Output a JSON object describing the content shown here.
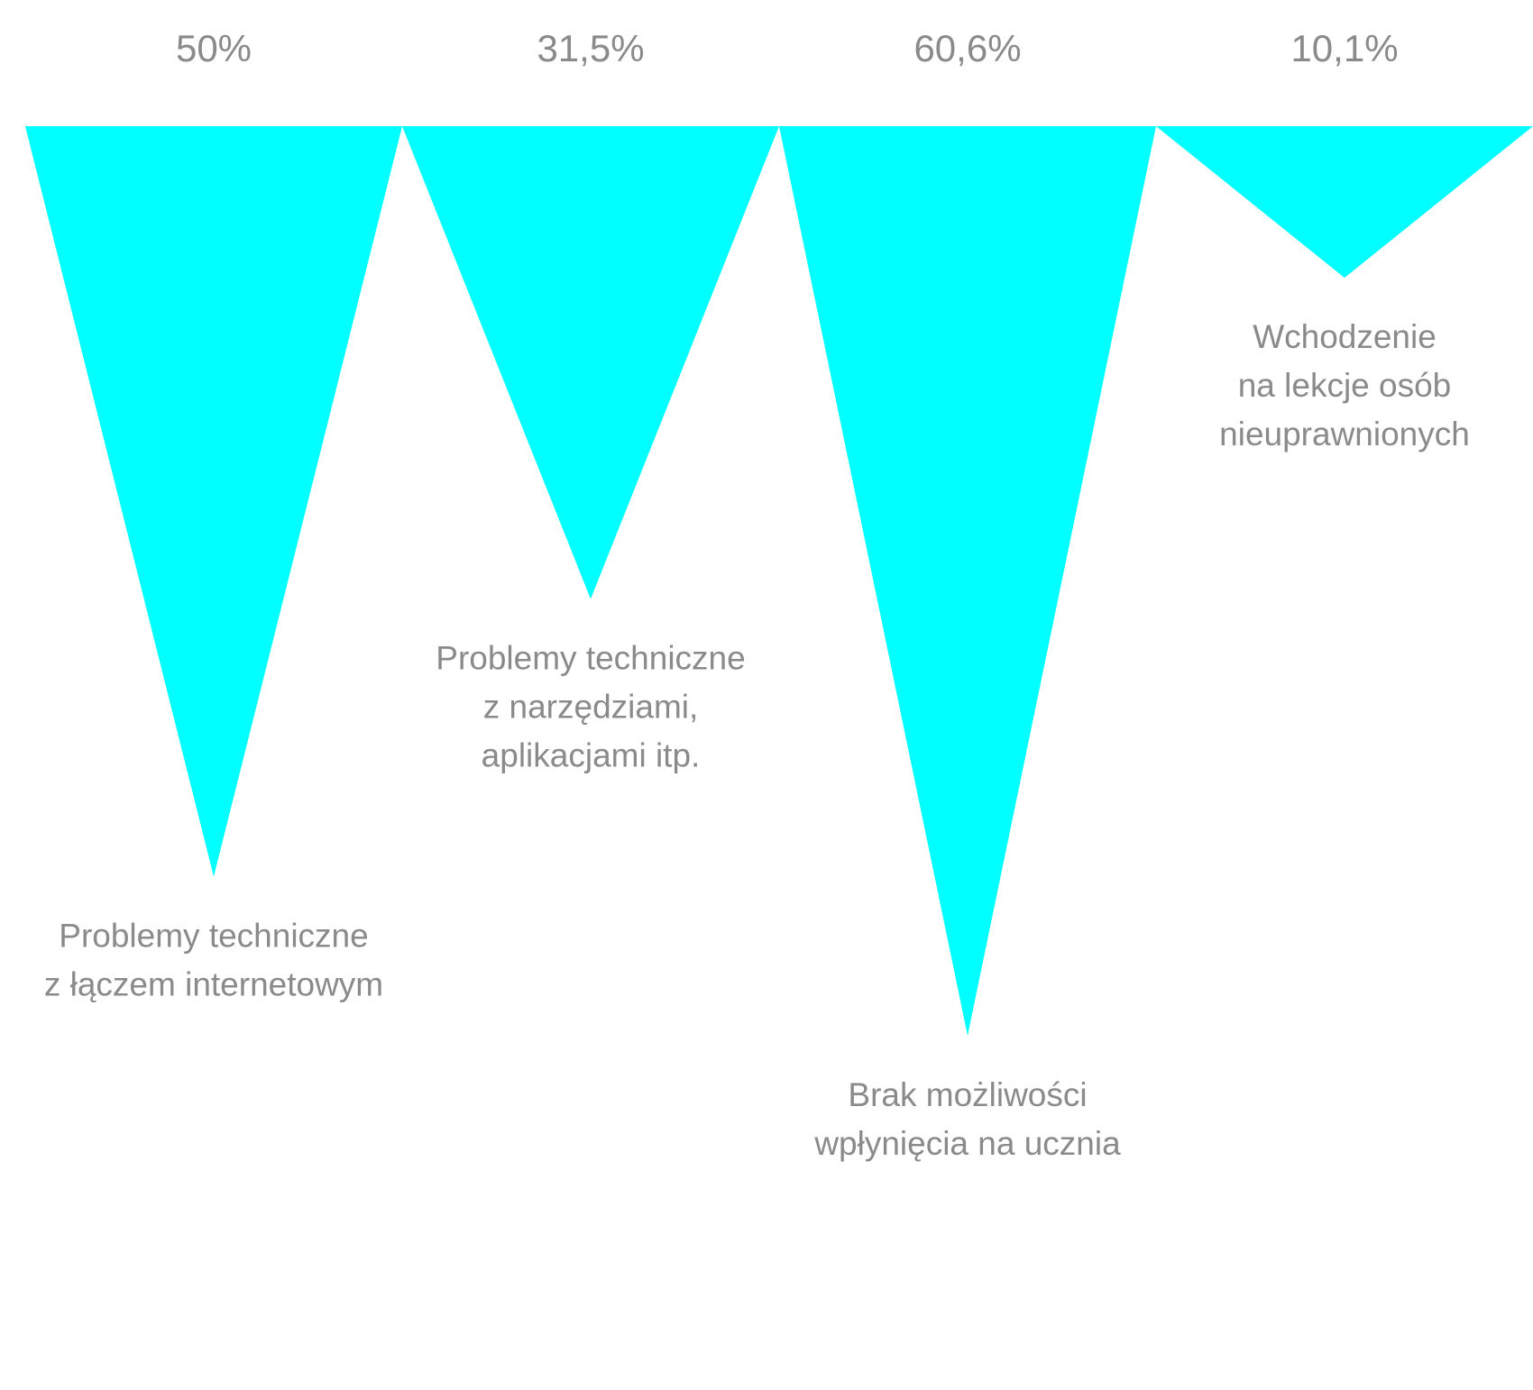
{
  "chart_data": {
    "type": "bar",
    "orientation": "inverted-triangles",
    "unit": "%",
    "accent_color": "#00ffff",
    "text_color": "#8a8a8a",
    "categories": [
      [
        "Problemy techniczne",
        "z łączem internetowym"
      ],
      [
        "Problemy techniczne",
        "z narzędziami,",
        "aplikacjami itp."
      ],
      [
        "Brak możliwości",
        "wpłynięcia na ucznia"
      ],
      [
        "Wchodzenie",
        "na lekcje osób",
        "nieuprawnionych"
      ]
    ],
    "values": [
      50,
      31.5,
      60.6,
      10.1
    ],
    "value_labels": [
      "50%",
      "31,5%",
      "60,6%",
      "10,1%"
    ],
    "title": "",
    "xlabel": "",
    "ylabel": "",
    "ylim": [
      0,
      60.6
    ],
    "grid": false,
    "legend": "none"
  }
}
